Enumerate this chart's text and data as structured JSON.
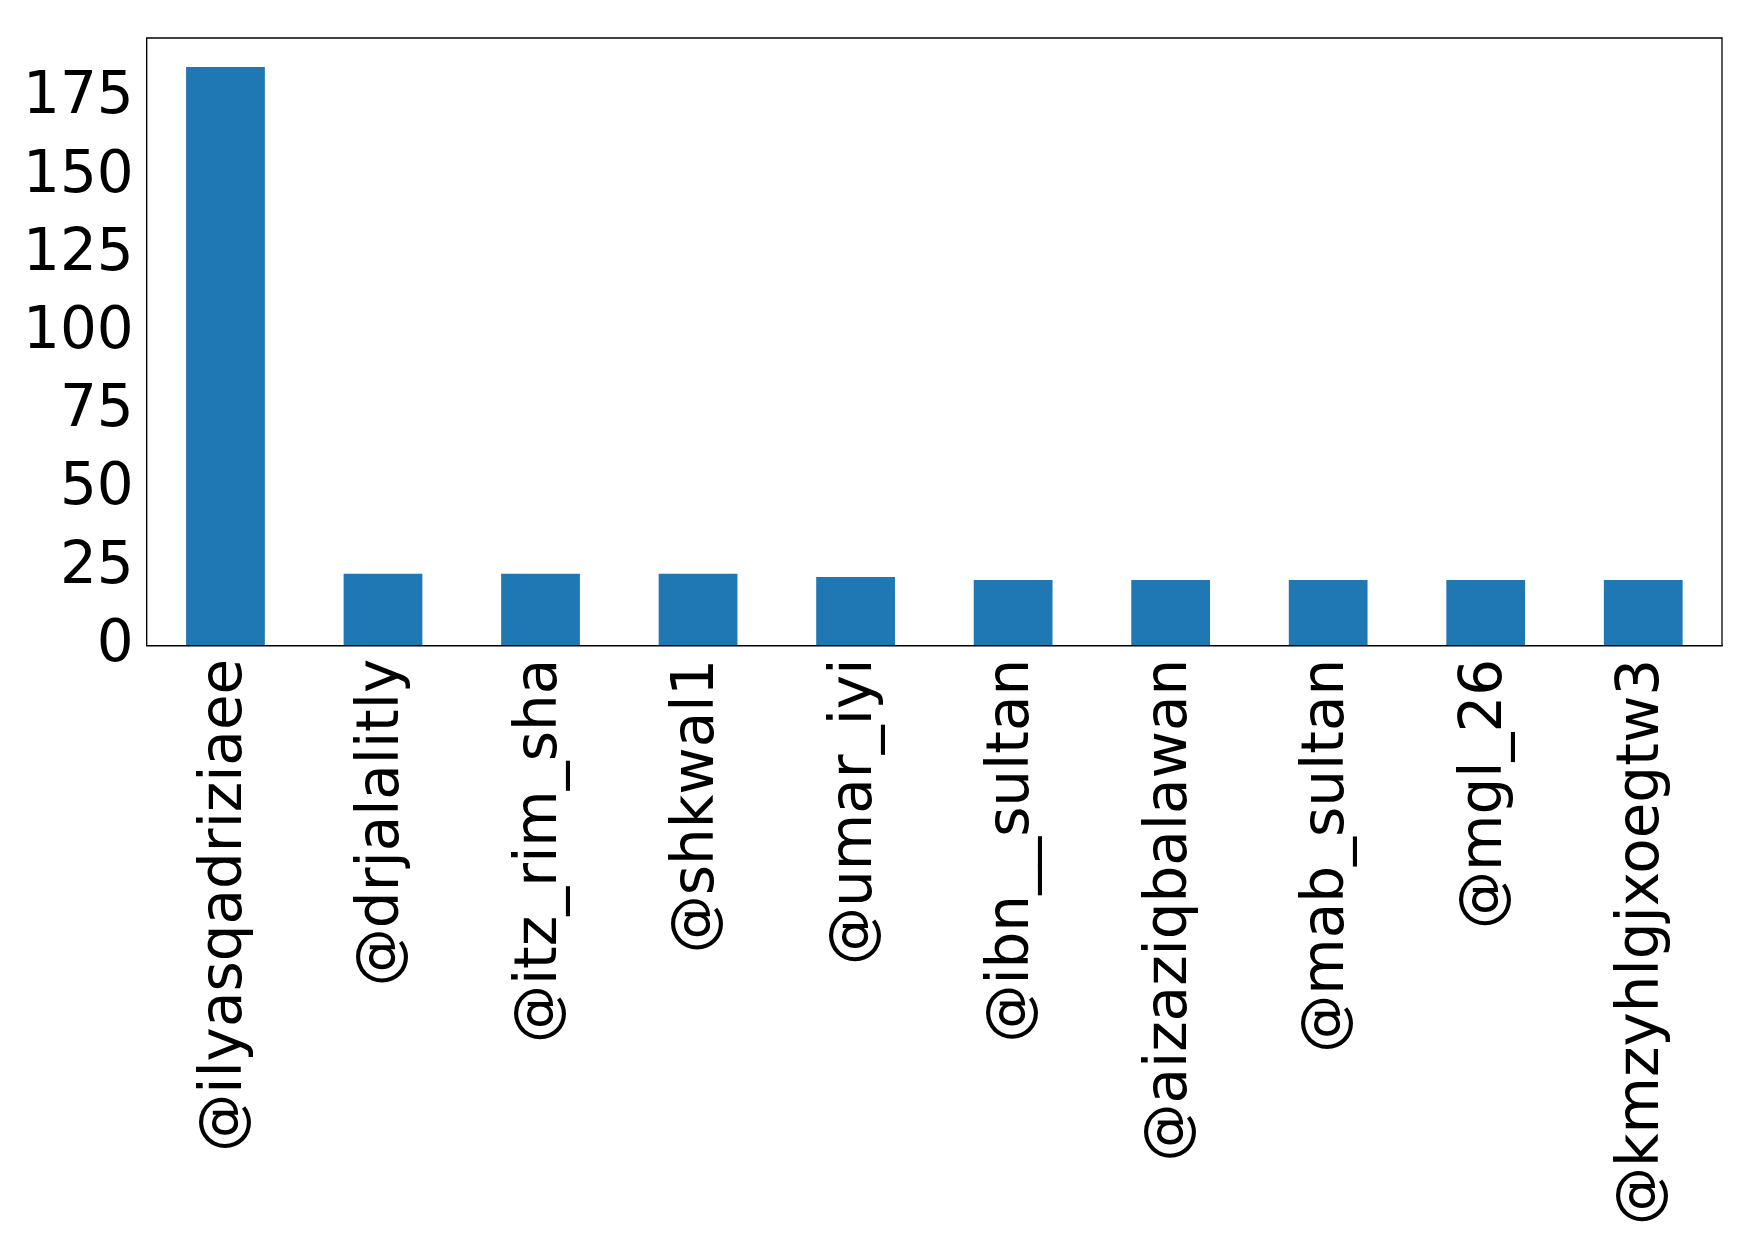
{
  "chart_data": {
    "type": "bar",
    "categories": [
      "@ilyasqadriziaee",
      "@drjalalitly",
      "@itz_rim_sha",
      "@shkwal1",
      "@umar_iyi",
      "@ibn__sultan",
      "@aizaziqbalawan",
      "@mab_sultan",
      "@mgl_26",
      "@kmzyhlgjxoegtw3"
    ],
    "values": [
      185,
      23,
      23,
      23,
      22,
      21,
      21,
      21,
      21,
      21
    ],
    "color": "#1f77b4",
    "ylim": [
      0,
      194.3
    ],
    "yticks": [
      0,
      25,
      50,
      75,
      100,
      125,
      150,
      175
    ],
    "grid": false,
    "legend": false
  }
}
